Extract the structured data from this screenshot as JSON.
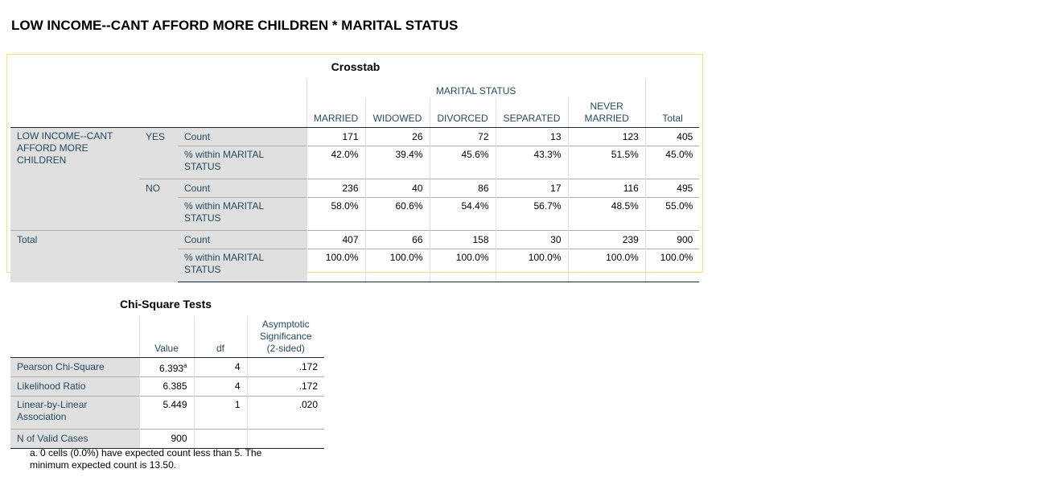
{
  "page": {
    "title": "LOW INCOME--CANT AFFORD MORE CHILDREN * MARITAL STATUS"
  },
  "crosstab": {
    "caption": "Crosstab",
    "column_variable": "MARITAL STATUS",
    "columns": [
      "MARRIED",
      "WIDOWED",
      "DIVORCED",
      "SEPARATED",
      "NEVER MARRIED",
      "Total"
    ],
    "row_variable": "LOW INCOME--CANT AFFORD MORE CHILDREN",
    "groups": [
      {
        "label": "YES",
        "count_label": "Count",
        "count": [
          "171",
          "26",
          "72",
          "13",
          "123",
          "405"
        ],
        "pct_label": "% within MARITAL STATUS",
        "pct": [
          "42.0%",
          "39.4%",
          "45.6%",
          "43.3%",
          "51.5%",
          "45.0%"
        ]
      },
      {
        "label": "NO",
        "count_label": "Count",
        "count": [
          "236",
          "40",
          "86",
          "17",
          "116",
          "495"
        ],
        "pct_label": "% within MARITAL STATUS",
        "pct": [
          "58.0%",
          "60.6%",
          "54.4%",
          "56.7%",
          "48.5%",
          "55.0%"
        ]
      }
    ],
    "total": {
      "label": "Total",
      "count_label": "Count",
      "count": [
        "407",
        "66",
        "158",
        "30",
        "239",
        "900"
      ],
      "pct_label": "% within MARITAL STATUS",
      "pct": [
        "100.0%",
        "100.0%",
        "100.0%",
        "100.0%",
        "100.0%",
        "100.0%"
      ]
    }
  },
  "chi_square": {
    "caption": "Chi-Square Tests",
    "headers": [
      "Value",
      "df",
      "Asymptotic Significance (2-sided)"
    ],
    "rows": [
      {
        "label": "Pearson Chi-Square",
        "value": "6.393",
        "sup": "a",
        "df": "4",
        "sig": ".172"
      },
      {
        "label": "Likelihood Ratio",
        "value": "6.385",
        "df": "4",
        "sig": ".172"
      },
      {
        "label": "Linear-by-Linear Association",
        "value": "5.449",
        "df": "1",
        "sig": ".020"
      },
      {
        "label": "N of Valid Cases",
        "value": "900",
        "df": "",
        "sig": ""
      }
    ],
    "footnote_mark": "a.",
    "footnote": "0 cells (0.0%) have expected count less than 5. The minimum expected count is 13.50."
  }
}
